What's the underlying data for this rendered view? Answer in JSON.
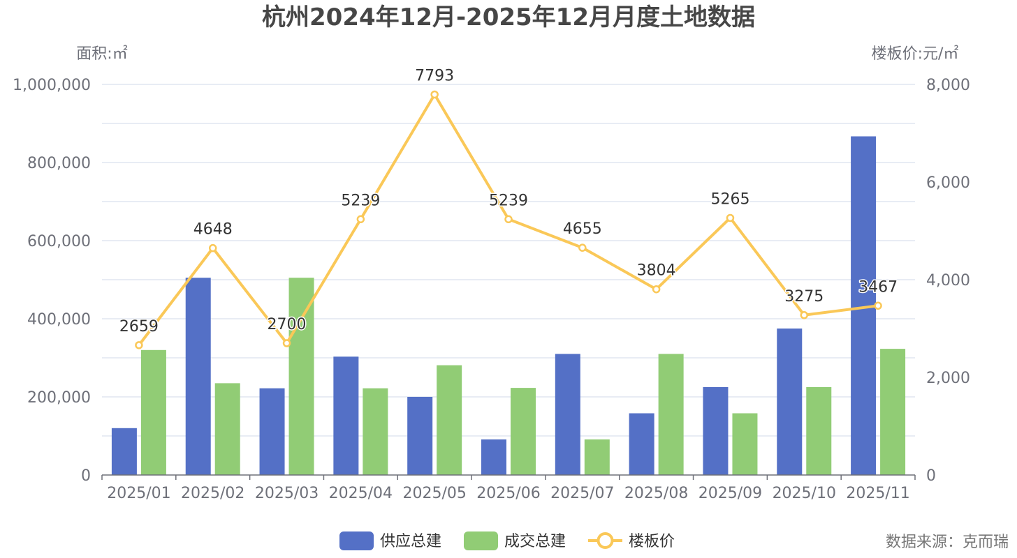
{
  "chart_data": {
    "type": "bar",
    "title": "杭州2024年12月-2025年12月月度土地数据",
    "y_left_label": "面积:㎡",
    "y_right_label": "楼板价:元/㎡",
    "categories": [
      "2025/01",
      "2025/02",
      "2025/03",
      "2025/04",
      "2025/05",
      "2025/06",
      "2025/07",
      "2025/08",
      "2025/09",
      "2025/10",
      "2025/11"
    ],
    "y_left": {
      "min": 0,
      "max": 1000000,
      "ticks": [
        "0",
        "200,000",
        "400,000",
        "600,000",
        "800,000",
        "1,000,000"
      ]
    },
    "y_right": {
      "min": 0,
      "max": 8000,
      "ticks": [
        "0",
        "2,000",
        "4,000",
        "6,000",
        "8,000"
      ]
    },
    "series": [
      {
        "name": "供应总建",
        "type": "bar",
        "axis": "left",
        "color": "#5470c6",
        "values": [
          120000,
          505000,
          222000,
          303000,
          200000,
          91000,
          310000,
          158000,
          225000,
          375000,
          867000
        ]
      },
      {
        "name": "成交总建",
        "type": "bar",
        "axis": "left",
        "color": "#91cc75",
        "values": [
          320000,
          235000,
          505000,
          222000,
          281000,
          223000,
          91000,
          310000,
          158000,
          225000,
          323000
        ]
      },
      {
        "name": "楼板价",
        "type": "line",
        "axis": "right",
        "color": "#fac858",
        "values": [
          2659,
          4648,
          2700,
          5239,
          7793,
          5239,
          4655,
          3804,
          5265,
          3275,
          3467
        ],
        "labels": [
          "2659",
          "4648",
          "2700",
          "5239",
          "7793",
          "5239",
          "4655",
          "3804",
          "5265",
          "3275",
          "3467"
        ]
      }
    ],
    "legend_position": "bottom-center",
    "grid": true
  },
  "source": "数据来源：克而瑞"
}
